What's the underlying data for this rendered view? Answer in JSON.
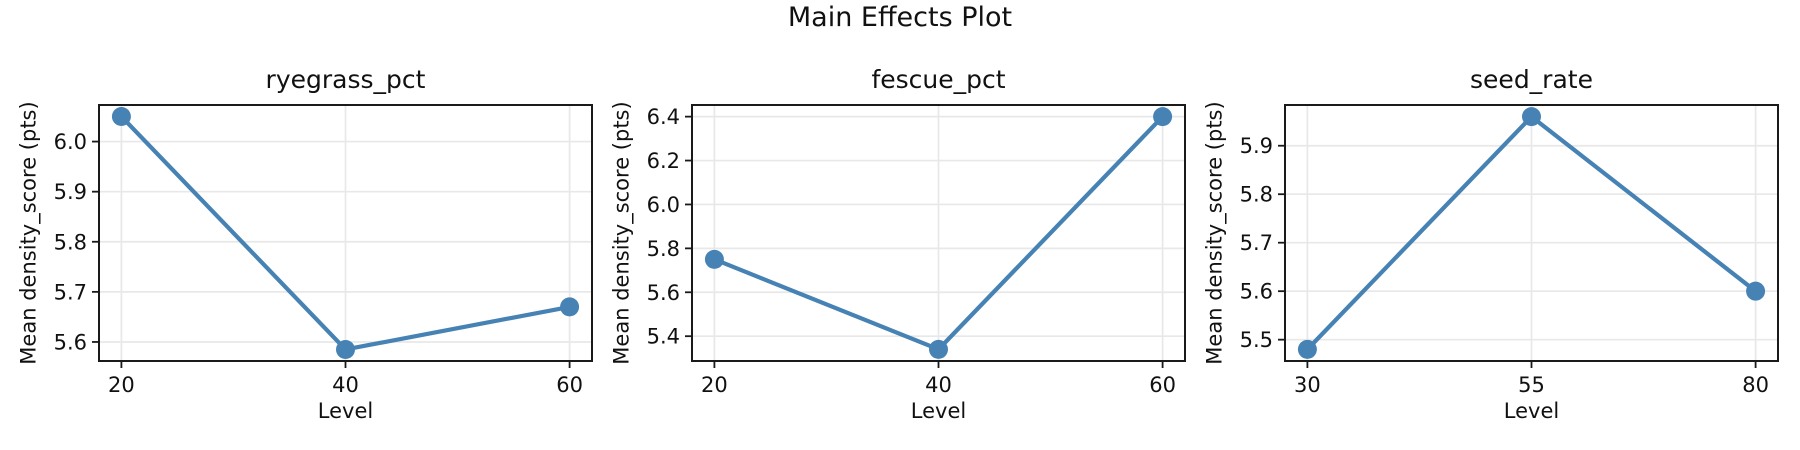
{
  "figure": {
    "suptitle": "Main Effects Plot"
  },
  "style": {
    "background": "#ffffff",
    "line_color": "#4682b4",
    "marker_color": "#4682b4",
    "grid_color": "#e8e8e8",
    "spine_color": "#1a1a1a",
    "text_color": "#111111"
  },
  "chart_data": [
    {
      "type": "line",
      "title": "ryegrass_pct",
      "xlabel": "Level",
      "ylabel": "Mean density_score (pts)",
      "x": [
        20,
        40,
        60
      ],
      "y": [
        6.05,
        5.585,
        5.67
      ],
      "xticks": [
        20,
        40,
        60
      ],
      "yticks": [
        5.6,
        5.7,
        5.8,
        5.9,
        6.0
      ],
      "xlim": [
        18,
        62
      ],
      "ylim": [
        5.562,
        6.073
      ],
      "grid": true,
      "marker": "circle"
    },
    {
      "type": "line",
      "title": "fescue_pct",
      "xlabel": "Level",
      "ylabel": "Mean density_score (pts)",
      "x": [
        20,
        40,
        60
      ],
      "y": [
        5.75,
        5.34,
        6.4
      ],
      "xticks": [
        20,
        40,
        60
      ],
      "yticks": [
        5.4,
        5.6,
        5.8,
        6.0,
        6.2,
        6.4
      ],
      "xlim": [
        18,
        62
      ],
      "ylim": [
        5.287,
        6.453
      ],
      "grid": true,
      "marker": "circle"
    },
    {
      "type": "line",
      "title": "seed_rate",
      "xlabel": "Level",
      "ylabel": "Mean density_score (pts)",
      "x": [
        30,
        55,
        80
      ],
      "y": [
        5.48,
        5.96,
        5.6
      ],
      "xticks": [
        30,
        55,
        80
      ],
      "yticks": [
        5.5,
        5.6,
        5.7,
        5.8,
        5.9
      ],
      "xlim": [
        27.5,
        82.5
      ],
      "ylim": [
        5.456,
        5.984
      ],
      "grid": true,
      "marker": "circle"
    }
  ]
}
